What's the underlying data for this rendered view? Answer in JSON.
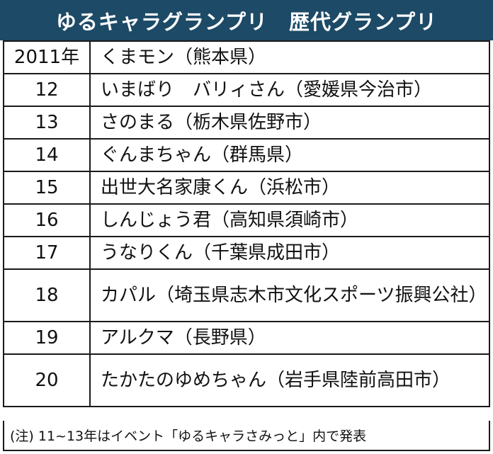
{
  "header": {
    "title": "ゆるキャラグランプリ　歴代グランプリ"
  },
  "rows": [
    {
      "year": "2011年",
      "name": "くまモン（熊本県）"
    },
    {
      "year": "12",
      "name": "いまばり　バリィさん（愛媛県今治市）"
    },
    {
      "year": "13",
      "name": "さのまる（栃木県佐野市）"
    },
    {
      "year": "14",
      "name": "ぐんまちゃん（群馬県）"
    },
    {
      "year": "15",
      "name": "出世大名家康くん（浜松市）"
    },
    {
      "year": "16",
      "name": "しんじょう君（高知県須崎市）"
    },
    {
      "year": "17",
      "name": "うなりくん（千葉県成田市）"
    },
    {
      "year": "18",
      "name": "カパル（埼玉県志木市文化スポーツ振興公社）"
    },
    {
      "year": "19",
      "name": "アルクマ（長野県）"
    },
    {
      "year": "20",
      "name": "たかたのゆめちゃん（岩手県陸前高田市）"
    }
  ],
  "note": "(注) 11~13年はイベント「ゆるキャラさみっと」内で発表"
}
